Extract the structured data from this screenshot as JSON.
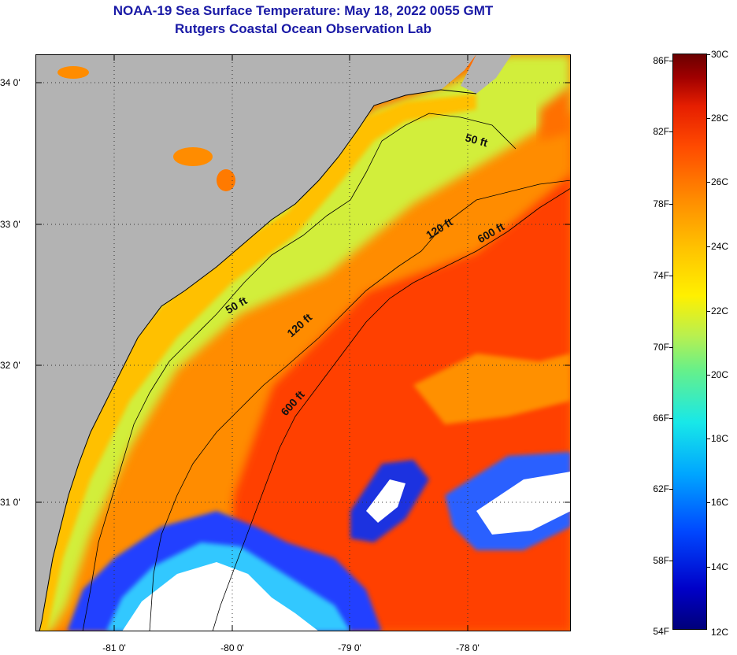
{
  "header": {
    "title": "NOAA-19 Sea Surface Temperature:  May 18, 2022 0055 GMT",
    "subtitle": "Rutgers Coastal Ocean Observation Lab"
  },
  "map": {
    "latitude_labels": [
      "34 0'",
      "33 0'",
      "32 0'",
      "31 0'"
    ],
    "longitude_labels": [
      "-81 0'",
      "-80 0'",
      "-79 0'",
      "-78 0'"
    ],
    "contour_labels": [
      "50 ft",
      "50 ft",
      "120 ft",
      "120 ft",
      "600 ft",
      "600 ft"
    ],
    "colors": {
      "land": "#b3b3b3",
      "cloud": "#ffffff",
      "nearshore": "#ffb000",
      "shelf": "#c8f040",
      "offshore": "#ff5000"
    }
  },
  "colorbar": {
    "fahrenheit_labels": [
      "86F",
      "82F",
      "78F",
      "74F",
      "70F",
      "66F",
      "62F",
      "58F",
      "54F"
    ],
    "celsius_labels": [
      "30C",
      "28C",
      "26C",
      "24C",
      "22C",
      "20C",
      "18C",
      "16C",
      "14C",
      "12C"
    ]
  }
}
